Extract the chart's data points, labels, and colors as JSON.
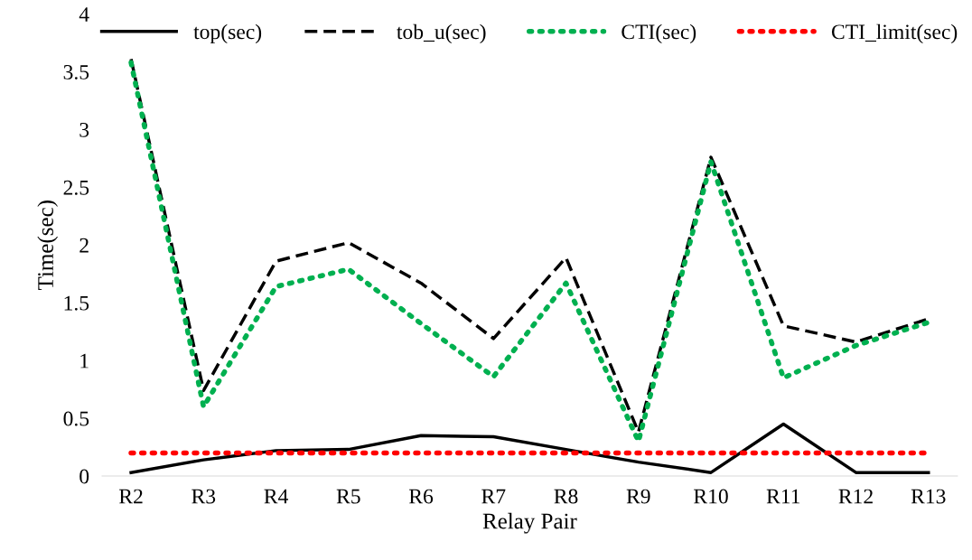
{
  "chart_data": {
    "type": "line",
    "xlabel": "Relay Pair",
    "ylabel": "Time(sec)",
    "categories": [
      "R2",
      "R3",
      "R4",
      "R5",
      "R6",
      "R7",
      "R8",
      "R9",
      "R10",
      "R11",
      "R12",
      "R13"
    ],
    "series": [
      {
        "name": "top(sec)",
        "color": "#000000",
        "line_style": "solid",
        "values": [
          0.03,
          0.14,
          0.22,
          0.23,
          0.35,
          0.34,
          0.23,
          0.12,
          0.03,
          0.45,
          0.03,
          0.03
        ]
      },
      {
        "name": "tob_u(sec)",
        "color": "#000000",
        "line_style": "dashed",
        "values": [
          3.61,
          0.74,
          1.86,
          2.02,
          1.67,
          1.19,
          1.89,
          0.38,
          2.76,
          1.3,
          1.16,
          1.36
        ]
      },
      {
        "name": "CTI(sec)",
        "color": "#00b050",
        "line_style": "dotted",
        "values": [
          3.58,
          0.6,
          1.64,
          1.79,
          1.32,
          0.86,
          1.67,
          0.3,
          2.72,
          0.85,
          1.13,
          1.33
        ]
      },
      {
        "name": "CTI_limit(sec)",
        "color": "#ff0000",
        "line_style": "dotted",
        "values": [
          0.2,
          0.2,
          0.2,
          0.2,
          0.2,
          0.2,
          0.2,
          0.2,
          0.2,
          0.2,
          0.2,
          0.2
        ]
      }
    ],
    "ylim": [
      0,
      4
    ],
    "yticks": [
      0,
      0.5,
      1,
      1.5,
      2,
      2.5,
      3,
      3.5,
      4
    ],
    "grid": false,
    "legend": "top",
    "marker": "none"
  }
}
